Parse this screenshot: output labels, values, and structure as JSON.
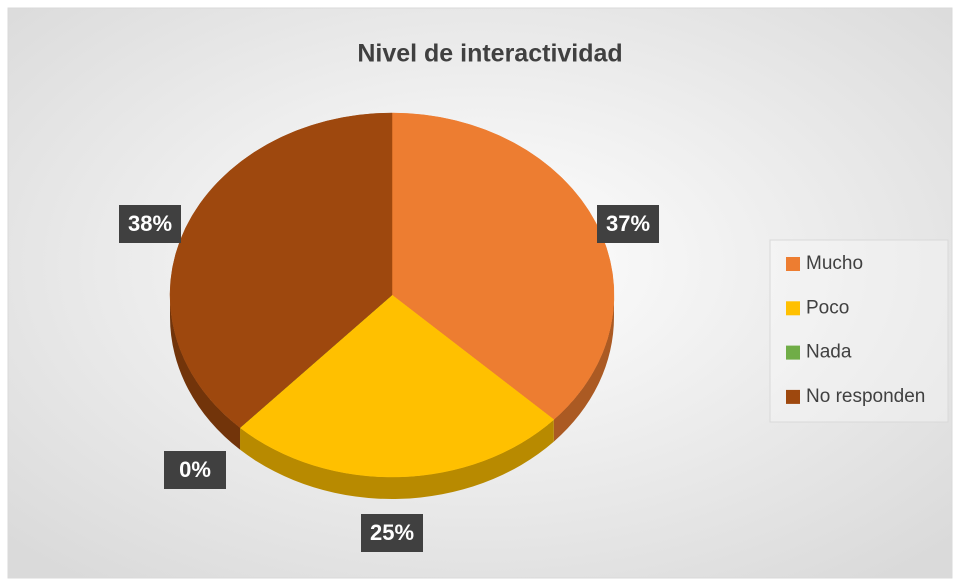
{
  "chart_data": {
    "type": "pie",
    "title": "Nivel de interactividad",
    "categories": [
      "Mucho",
      "Poco",
      "Nada",
      "No responden"
    ],
    "values": [
      37,
      25,
      0,
      38
    ],
    "value_labels": [
      "37%",
      "25%",
      "0%",
      "38%"
    ],
    "colors": [
      "#ED7D31",
      "#FFC000",
      "#70AD47",
      "#9E480E"
    ],
    "legend": "right"
  }
}
